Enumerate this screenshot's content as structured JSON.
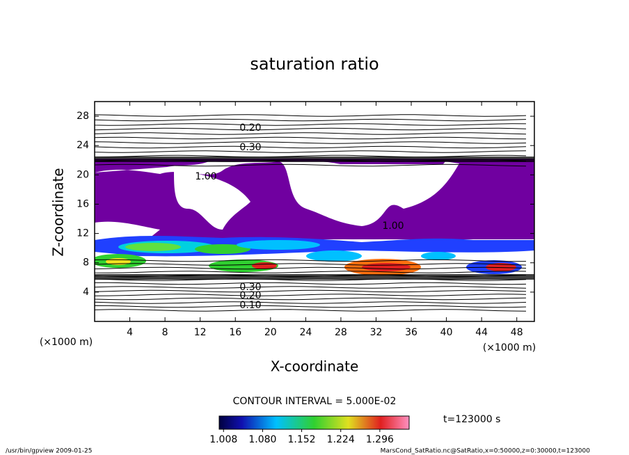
{
  "chart_data": {
    "type": "contour",
    "title": "saturation ratio",
    "x_label": "X-coordinate",
    "y_label": "Z-coordinate",
    "x_unit": "(×1000 m)",
    "y_unit": "(×1000 m)",
    "xlim": [
      0,
      50
    ],
    "xticks": [
      4,
      8,
      12,
      16,
      20,
      24,
      28,
      32,
      36,
      40,
      44,
      48
    ],
    "ylim": [
      0,
      30
    ],
    "yticks": [
      4,
      8,
      12,
      16,
      20,
      24,
      28
    ],
    "contour_interval": "CONTOUR INTERVAL = 5.000E-02",
    "contour_labels": [
      {
        "value": 0.2,
        "label": "0.20"
      },
      {
        "value": 0.3,
        "label": "0.30"
      },
      {
        "value": 1.0,
        "label": "1.00"
      },
      {
        "value": 1.0,
        "label": "1.00"
      },
      {
        "value": 0.3,
        "label": "0.30"
      },
      {
        "value": 0.2,
        "label": "0.20"
      },
      {
        "value": 0.1,
        "label": "0.10"
      }
    ],
    "clim": [
      1.0,
      1.35
    ],
    "cticks": [
      1.008,
      {
        "value": 1.08,
        "label": "1.080"
      },
      1.152,
      1.224,
      1.296
    ],
    "time_label": "t=123000 s",
    "footer_left": "/usr/bin/gpview   2009-01-25",
    "footer_right": "MarsCond_SatRatio.nc@SatRatio,x=0:50000,z=0:30000,t=123000"
  }
}
